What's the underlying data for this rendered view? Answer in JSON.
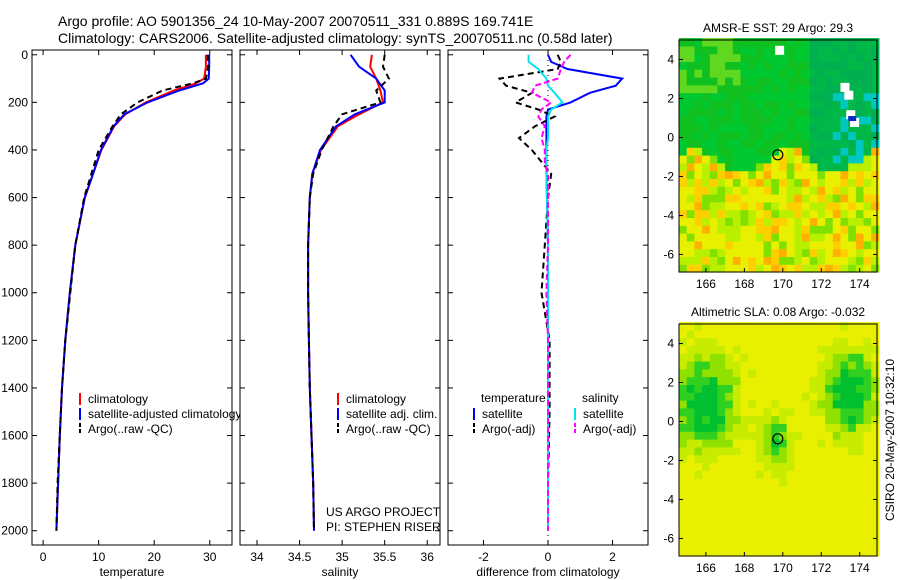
{
  "title": {
    "line1": "Argo profile: AO 5901356_24 10-May-2007 20070511_331 0.889S 169.741E",
    "line2": "Climatology: CARS2006. Satellite-adjusted climatology: synTS_20070511.nc (0.58d later)"
  },
  "side_label": "CSIRO 20-May-2007 10:32:10",
  "colors": {
    "climatology": "#ff0000",
    "satellite": "#0000ff",
    "argo": "#000000",
    "sal_satellite": "#00e5ee",
    "sal_argo": "#ff00ff"
  },
  "chart_data": [
    {
      "type": "line",
      "xlabel": "temperature",
      "ylabel": "",
      "xlim": [
        -2,
        34
      ],
      "ylim": [
        2060,
        -20
      ],
      "xticks": [
        "0",
        "10",
        "20",
        "30"
      ],
      "xtick_values": [
        0,
        10,
        20,
        30
      ],
      "yticks": [
        "0",
        "200",
        "400",
        "600",
        "800",
        "1000",
        "1200",
        "1400",
        "1600",
        "1800",
        "2000"
      ],
      "ytick_values": [
        0,
        200,
        400,
        600,
        800,
        1000,
        1200,
        1400,
        1600,
        1800,
        2000
      ],
      "legend": [
        "climatology",
        "satellite-adjusted climatology",
        "Argo(..raw -QC)"
      ],
      "depth": [
        0,
        50,
        100,
        120,
        150,
        200,
        250,
        300,
        400,
        500,
        600,
        800,
        1000,
        1200,
        1400,
        1600,
        1800,
        2000
      ],
      "series": [
        {
          "name": "climatology",
          "values": [
            29.3,
            29.3,
            29.0,
            27.5,
            23.5,
            18.5,
            14.8,
            12.8,
            10.5,
            9.0,
            7.5,
            5.8,
            4.8,
            4.0,
            3.4,
            3.0,
            2.7,
            2.4
          ]
        },
        {
          "name": "satellite-adjusted climatology",
          "values": [
            29.9,
            29.9,
            29.8,
            28.8,
            24.5,
            18.8,
            14.6,
            12.7,
            10.4,
            9.0,
            7.5,
            5.8,
            4.8,
            4.0,
            3.4,
            3.0,
            2.7,
            2.4
          ]
        },
        {
          "name": "Argo(..raw -QC)",
          "values": [
            29.6,
            29.7,
            29.3,
            27.0,
            21.5,
            17.0,
            14.0,
            12.5,
            10.0,
            8.7,
            7.4,
            5.8,
            4.9,
            4.0,
            3.4,
            3.0,
            2.6,
            2.4
          ]
        }
      ]
    },
    {
      "type": "line",
      "xlabel": "salinity",
      "xlim": [
        33.8,
        36.15
      ],
      "ylim": [
        2060,
        -20
      ],
      "xticks": [
        "34",
        "34.5",
        "35",
        "35.5",
        "36"
      ],
      "xtick_values": [
        34,
        34.5,
        35,
        35.5,
        36
      ],
      "legend": [
        "climatology",
        "satellite adj. clim.",
        "Argo(..raw -QC)"
      ],
      "annotation": [
        "US ARGO PROJECT",
        "PI: STEPHEN RISER"
      ],
      "depth": [
        0,
        50,
        100,
        150,
        200,
        250,
        300,
        400,
        500,
        600,
        800,
        1000,
        1200,
        1400,
        1600,
        1800,
        2000
      ],
      "series": [
        {
          "name": "climatology",
          "values": [
            35.35,
            35.33,
            35.4,
            35.45,
            35.48,
            35.2,
            34.95,
            34.75,
            34.65,
            34.62,
            34.6,
            34.6,
            34.61,
            34.62,
            34.64,
            34.66,
            34.67
          ]
        },
        {
          "name": "satellite adj. clim.",
          "values": [
            35.1,
            35.2,
            35.4,
            35.5,
            35.5,
            35.15,
            34.93,
            34.74,
            34.65,
            34.62,
            34.6,
            34.6,
            34.61,
            34.62,
            34.64,
            34.66,
            34.67
          ]
        },
        {
          "name": "Argo(..raw -QC)",
          "values": [
            35.5,
            35.48,
            35.55,
            35.4,
            35.45,
            35.0,
            34.9,
            34.76,
            34.66,
            34.62,
            34.6,
            34.6,
            34.61,
            34.62,
            34.64,
            34.66,
            34.67
          ]
        }
      ]
    },
    {
      "type": "line",
      "xlabel": "difference from climatology",
      "xlim": [
        -3.1,
        3.1
      ],
      "ylim": [
        2060,
        -20
      ],
      "xticks": [
        "-2",
        "0",
        "2"
      ],
      "xtick_values": [
        -2,
        0,
        2
      ],
      "legend_headers": [
        "temperature",
        "salinity"
      ],
      "legend": [
        "satellite",
        "Argo(-adj)",
        "satellite",
        "Argo(-adj)"
      ],
      "depth": [
        0,
        30,
        60,
        100,
        130,
        160,
        200,
        230,
        260,
        300,
        350,
        400,
        450,
        500,
        600,
        800,
        1000,
        1200,
        1500,
        1800,
        2000
      ],
      "series": [
        {
          "name": "temperature satellite",
          "values": [
            0.0,
            0.1,
            0.6,
            2.3,
            2.1,
            1.3,
            0.7,
            0.0,
            -0.05,
            -0.05,
            -0.05,
            -0.05,
            -0.05,
            -0.05,
            -0.03,
            0,
            0,
            0,
            0,
            0,
            0
          ]
        },
        {
          "name": "temperature Argo(-adj)",
          "values": [
            0.3,
            0.4,
            0.3,
            -1.5,
            -1.3,
            -0.5,
            -1.0,
            -0.3,
            0.2,
            -0.4,
            -0.9,
            -0.5,
            -0.2,
            0.1,
            0.0,
            -0.1,
            -0.2,
            0.05,
            0.05,
            0.0,
            0.0
          ]
        },
        {
          "name": "salinity satellite",
          "values": [
            -0.6,
            -0.6,
            -0.3,
            -0.05,
            0.0,
            0.2,
            0.45,
            0.1,
            0.0,
            0.0,
            0.0,
            -0.05,
            -0.05,
            -0.05,
            -0.03,
            0,
            0,
            0,
            0,
            0,
            0
          ]
        },
        {
          "name": "salinity Argo(-adj)",
          "values": [
            0.7,
            0.5,
            0.4,
            0.3,
            -0.4,
            -0.5,
            0.1,
            -0.2,
            -0.3,
            -0.1,
            -0.2,
            -0.1,
            -0.1,
            0.0,
            0.0,
            0.0,
            -0.05,
            0.0,
            0.0,
            0.0,
            0.0
          ]
        }
      ]
    },
    {
      "type": "heatmap",
      "title": "AMSR-E SST: 29 Argo: 29.3",
      "xlim": [
        164.6,
        174.9
      ],
      "ylim": [
        -6.9,
        5.0
      ],
      "xticks": [
        "166",
        "168",
        "170",
        "172",
        "174"
      ],
      "xtick_values": [
        166,
        168,
        170,
        172,
        174
      ],
      "yticks": [
        "4",
        "2",
        "0",
        "-2",
        "-4",
        "-6"
      ],
      "ytick_values": [
        4,
        2,
        0,
        -2,
        -4,
        -6
      ],
      "marker": {
        "lon": 169.741,
        "lat": -0.889
      }
    },
    {
      "type": "heatmap",
      "title": "Altimetric SLA: 0.08 Argo: -0.032",
      "xlim": [
        164.6,
        174.9
      ],
      "ylim": [
        -6.9,
        5.0
      ],
      "xticks": [
        "166",
        "168",
        "170",
        "172",
        "174"
      ],
      "xtick_values": [
        166,
        168,
        170,
        172,
        174
      ],
      "yticks": [
        "4",
        "2",
        "0",
        "-2",
        "-4",
        "-6"
      ],
      "ytick_values": [
        4,
        2,
        0,
        -2,
        -4,
        -6
      ],
      "marker": {
        "lon": 169.741,
        "lat": -0.889
      }
    }
  ]
}
